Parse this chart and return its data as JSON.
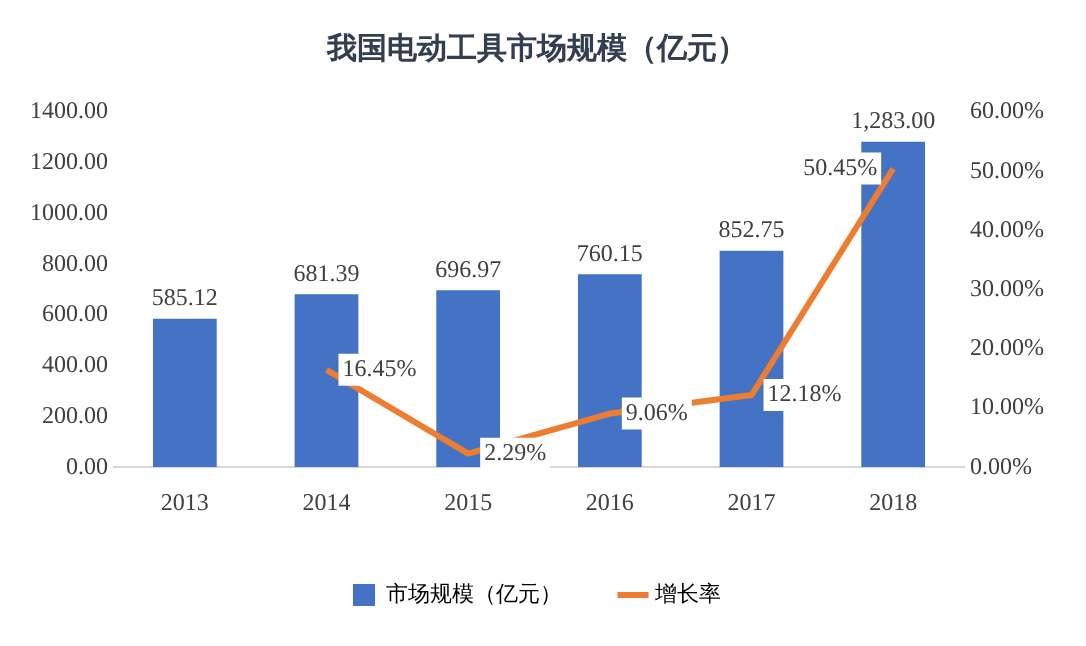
{
  "chart_data": {
    "type": "bar",
    "title": "我国电动工具市场规模（亿元）",
    "categories": [
      "2013",
      "2014",
      "2015",
      "2016",
      "2017",
      "2018"
    ],
    "series": [
      {
        "name": "市场规模（亿元）",
        "color": "#4472c4",
        "values": [
          585.12,
          681.39,
          696.97,
          760.15,
          852.75,
          1283.0
        ],
        "value_labels": [
          "585.12",
          "681.39",
          "696.97",
          "760.15",
          "852.75",
          "1,283.00"
        ]
      },
      {
        "name": "增长率",
        "type": "line",
        "axis": "y2",
        "color": "#ed7d31",
        "values": [
          null,
          16.45,
          2.29,
          9.06,
          12.18,
          50.45
        ],
        "value_labels": [
          null,
          "16.45%",
          "2.29%",
          "9.06%",
          "12.18%",
          "50.45%"
        ]
      }
    ],
    "ylim": [
      0,
      1400
    ],
    "yticks": [
      {
        "value": 0,
        "label": "0.00"
      },
      {
        "value": 200,
        "label": "200.00"
      },
      {
        "value": 400,
        "label": "400.00"
      },
      {
        "value": 600,
        "label": "600.00"
      },
      {
        "value": 800,
        "label": "800.00"
      },
      {
        "value": 1000,
        "label": "1000.00"
      },
      {
        "value": 1200,
        "label": "1200.00"
      },
      {
        "value": 1400,
        "label": "1400.00"
      }
    ],
    "y2lim": [
      0,
      60
    ],
    "y2ticks": [
      {
        "value": 0,
        "label": "0.00%"
      },
      {
        "value": 10,
        "label": "10.00%"
      },
      {
        "value": 20,
        "label": "20.00%"
      },
      {
        "value": 30,
        "label": "30.00%"
      },
      {
        "value": 40,
        "label": "40.00%"
      },
      {
        "value": 50,
        "label": "50.00%"
      },
      {
        "value": 60,
        "label": "60.00%"
      }
    ],
    "legend": "bottom",
    "marker": "none",
    "line_style": "solid"
  }
}
